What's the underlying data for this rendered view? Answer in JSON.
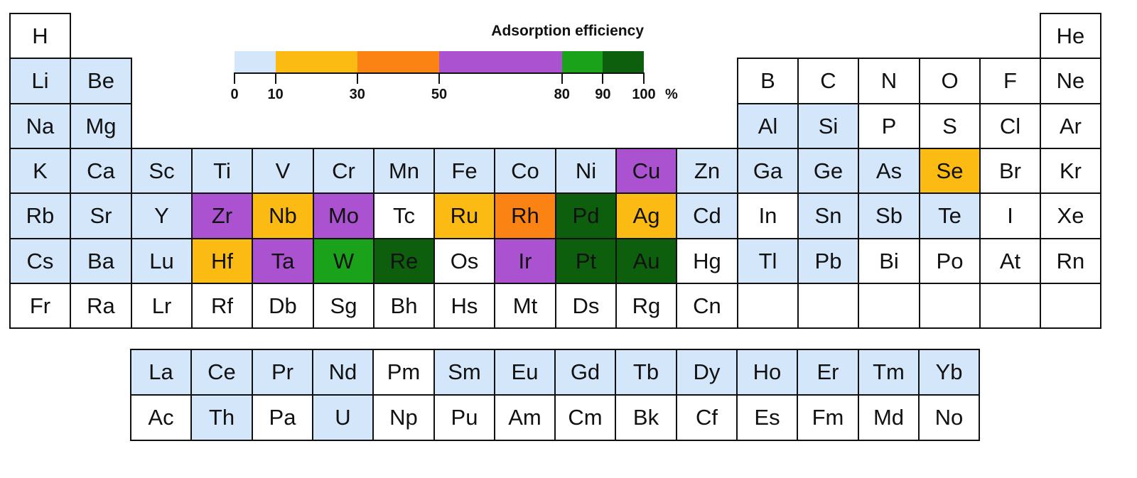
{
  "legend": {
    "title": "Adsorption efficiency",
    "unit": "%",
    "ticks": [
      "0",
      "10",
      "30",
      "50",
      "80",
      "90",
      "100"
    ],
    "segments": [
      {
        "from": 0,
        "to": 10,
        "color": "#d4e6fa"
      },
      {
        "from": 10,
        "to": 30,
        "color": "#fbbb13"
      },
      {
        "from": 30,
        "to": 50,
        "color": "#fb8313"
      },
      {
        "from": 50,
        "to": 80,
        "color": "#aa52d0"
      },
      {
        "from": 80,
        "to": 90,
        "color": "#1aa31a"
      },
      {
        "from": 90,
        "to": 100,
        "color": "#0d5e0d"
      }
    ]
  },
  "colors": {
    "n": "#ffffff",
    "l": "#d4e6fa",
    "y": "#fbbb13",
    "o": "#fb8313",
    "p": "#aa52d0",
    "g": "#1aa31a",
    "d": "#0d5e0d"
  },
  "main_rows": [
    [
      [
        "H",
        "n"
      ],
      null,
      null,
      null,
      null,
      null,
      null,
      null,
      null,
      null,
      null,
      null,
      null,
      null,
      null,
      null,
      null,
      [
        "He",
        "n"
      ]
    ],
    [
      [
        "Li",
        "l"
      ],
      [
        "Be",
        "l"
      ],
      null,
      null,
      null,
      null,
      null,
      null,
      null,
      null,
      null,
      null,
      [
        "B",
        "n"
      ],
      [
        "C",
        "n"
      ],
      [
        "N",
        "n"
      ],
      [
        "O",
        "n"
      ],
      [
        "F",
        "n"
      ],
      [
        "Ne",
        "n"
      ]
    ],
    [
      [
        "Na",
        "l"
      ],
      [
        "Mg",
        "l"
      ],
      null,
      null,
      null,
      null,
      null,
      null,
      null,
      null,
      null,
      null,
      [
        "Al",
        "l"
      ],
      [
        "Si",
        "l"
      ],
      [
        "P",
        "n"
      ],
      [
        "S",
        "n"
      ],
      [
        "Cl",
        "n"
      ],
      [
        "Ar",
        "n"
      ]
    ],
    [
      [
        "K",
        "l"
      ],
      [
        "Ca",
        "l"
      ],
      [
        "Sc",
        "l"
      ],
      [
        "Ti",
        "l"
      ],
      [
        "V",
        "l"
      ],
      [
        "Cr",
        "l"
      ],
      [
        "Mn",
        "l"
      ],
      [
        "Fe",
        "l"
      ],
      [
        "Co",
        "l"
      ],
      [
        "Ni",
        "l"
      ],
      [
        "Cu",
        "p"
      ],
      [
        "Zn",
        "l"
      ],
      [
        "Ga",
        "l"
      ],
      [
        "Ge",
        "l"
      ],
      [
        "As",
        "l"
      ],
      [
        "Se",
        "y"
      ],
      [
        "Br",
        "n"
      ],
      [
        "Kr",
        "n"
      ]
    ],
    [
      [
        "Rb",
        "l"
      ],
      [
        "Sr",
        "l"
      ],
      [
        "Y",
        "l"
      ],
      [
        "Zr",
        "p"
      ],
      [
        "Nb",
        "y"
      ],
      [
        "Mo",
        "p"
      ],
      [
        "Tc",
        "n"
      ],
      [
        "Ru",
        "y"
      ],
      [
        "Rh",
        "o"
      ],
      [
        "Pd",
        "d"
      ],
      [
        "Ag",
        "y"
      ],
      [
        "Cd",
        "l"
      ],
      [
        "In",
        "n"
      ],
      [
        "Sn",
        "l"
      ],
      [
        "Sb",
        "l"
      ],
      [
        "Te",
        "l"
      ],
      [
        "I",
        "n"
      ],
      [
        "Xe",
        "n"
      ]
    ],
    [
      [
        "Cs",
        "l"
      ],
      [
        "Ba",
        "l"
      ],
      [
        "Lu",
        "l"
      ],
      [
        "Hf",
        "y"
      ],
      [
        "Ta",
        "p"
      ],
      [
        "W",
        "g"
      ],
      [
        "Re",
        "d"
      ],
      [
        "Os",
        "n"
      ],
      [
        "Ir",
        "p"
      ],
      [
        "Pt",
        "d"
      ],
      [
        "Au",
        "d"
      ],
      [
        "Hg",
        "n"
      ],
      [
        "Tl",
        "l"
      ],
      [
        "Pb",
        "l"
      ],
      [
        "Bi",
        "n"
      ],
      [
        "Po",
        "n"
      ],
      [
        "At",
        "n"
      ],
      [
        "Rn",
        "n"
      ]
    ],
    [
      [
        "Fr",
        "n"
      ],
      [
        "Ra",
        "n"
      ],
      [
        "Lr",
        "n"
      ],
      [
        "Rf",
        "n"
      ],
      [
        "Db",
        "n"
      ],
      [
        "Sg",
        "n"
      ],
      [
        "Bh",
        "n"
      ],
      [
        "Hs",
        "n"
      ],
      [
        "Mt",
        "n"
      ],
      [
        "Ds",
        "n"
      ],
      [
        "Rg",
        "n"
      ],
      [
        "Cn",
        "n"
      ],
      [
        "",
        "n"
      ],
      [
        "",
        "n"
      ],
      [
        "",
        "n"
      ],
      [
        "",
        "n"
      ],
      [
        "",
        "n"
      ],
      [
        "",
        "n"
      ]
    ]
  ],
  "f_rows": [
    [
      [
        "La",
        "l"
      ],
      [
        "Ce",
        "l"
      ],
      [
        "Pr",
        "l"
      ],
      [
        "Nd",
        "l"
      ],
      [
        "Pm",
        "n"
      ],
      [
        "Sm",
        "l"
      ],
      [
        "Eu",
        "l"
      ],
      [
        "Gd",
        "l"
      ],
      [
        "Tb",
        "l"
      ],
      [
        "Dy",
        "l"
      ],
      [
        "Ho",
        "l"
      ],
      [
        "Er",
        "l"
      ],
      [
        "Tm",
        "l"
      ],
      [
        "Yb",
        "l"
      ]
    ],
    [
      [
        "Ac",
        "n"
      ],
      [
        "Th",
        "l"
      ],
      [
        "Pa",
        "n"
      ],
      [
        "U",
        "l"
      ],
      [
        "Np",
        "n"
      ],
      [
        "Pu",
        "n"
      ],
      [
        "Am",
        "n"
      ],
      [
        "Cm",
        "n"
      ],
      [
        "Bk",
        "n"
      ],
      [
        "Cf",
        "n"
      ],
      [
        "Es",
        "n"
      ],
      [
        "Fm",
        "n"
      ],
      [
        "Md",
        "n"
      ],
      [
        "No",
        "n"
      ]
    ]
  ]
}
